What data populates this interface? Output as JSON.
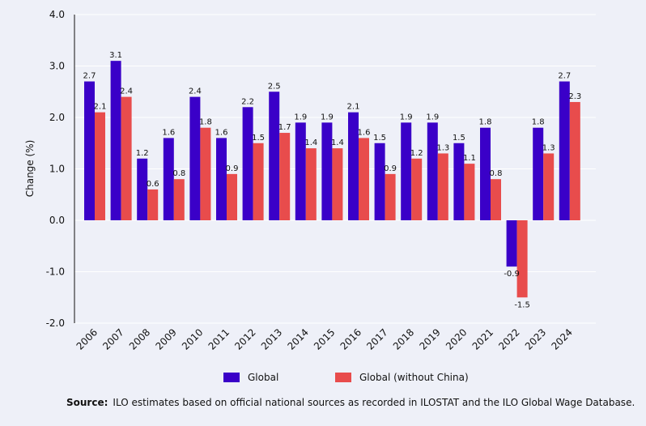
{
  "colors": {
    "global": "#3a00c8",
    "global_ex_china": "#e84c4c",
    "grid": "#ffffff",
    "axis": "#111111"
  },
  "chart_data": {
    "type": "bar",
    "categories": [
      "2006",
      "2007",
      "2008",
      "2009",
      "2010",
      "2011",
      "2012",
      "2013",
      "2014",
      "2015",
      "2016",
      "2017",
      "2018",
      "2019",
      "2020",
      "2021",
      "2022",
      "2023",
      "2024"
    ],
    "series": [
      {
        "name": "Global",
        "values": [
          2.7,
          3.1,
          1.2,
          1.6,
          2.4,
          1.6,
          2.2,
          2.5,
          1.9,
          1.9,
          2.1,
          1.5,
          1.9,
          1.9,
          1.5,
          1.8,
          -0.9,
          1.8,
          2.7
        ]
      },
      {
        "name": "Global (without China)",
        "values": [
          2.1,
          2.4,
          0.6,
          0.8,
          1.8,
          0.9,
          1.5,
          1.7,
          1.4,
          1.4,
          1.6,
          0.9,
          1.2,
          1.3,
          1.1,
          0.8,
          -1.5,
          1.3,
          2.3
        ]
      }
    ],
    "data_labels": [
      [
        "2.7",
        "3.1",
        "1.2",
        "1.6",
        "2.4",
        "1.6",
        "2.2",
        "2.5",
        "1.9",
        "1.9",
        "2.1",
        "1.5",
        "1.9",
        "1.9",
        "1.5",
        "1.8",
        "-0.9",
        "1.8",
        "2.7"
      ],
      [
        "2.1",
        "2.4",
        "0.6",
        "0.8",
        "1.8",
        "0.9",
        "1.5",
        "1.7",
        "1.4",
        "1.4",
        "1.6",
        "0.9",
        "1.2",
        "1.3",
        "1.1",
        "0.8",
        "-1.5",
        "1.3",
        "2.3"
      ]
    ],
    "ylabel": "Change (%)",
    "xlabel": "",
    "ylim": [
      -2.0,
      4.0
    ],
    "yticks": [
      "4.0",
      "3.0",
      "2.0",
      "1.0",
      "0.0",
      "-1.0",
      "-2.0"
    ],
    "ytick_values": [
      4.0,
      3.0,
      2.0,
      1.0,
      0.0,
      -1.0,
      -2.0
    ],
    "grid": true,
    "legend_position": "bottom"
  },
  "legend": {
    "global_label": "Global",
    "global_ex_china_label": "Global (without China)"
  },
  "source": {
    "prefix": "Source:",
    "text": "ILO estimates based on official national sources as recorded in ILOSTAT and the ILO Global Wage Database."
  }
}
